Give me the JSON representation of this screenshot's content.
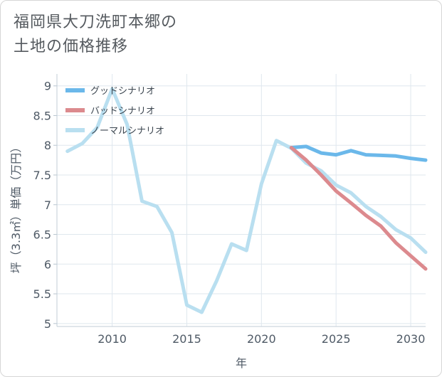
{
  "chart_data": {
    "type": "line",
    "title": "福岡県大刀洗町本郷の\n土地の価格推移",
    "xlabel": "年",
    "ylabel": "坪（3.3㎡）単価（万円）",
    "xlim": [
      2006.3,
      2031
    ],
    "ylim": [
      4.95,
      9.2
    ],
    "x_ticks": [
      2010,
      2015,
      2020,
      2025,
      2030
    ],
    "y_ticks": [
      5,
      5.5,
      6,
      6.5,
      7,
      7.5,
      8,
      8.5,
      9
    ],
    "grid": true,
    "legend_position": "top-left",
    "series": [
      {
        "name": "グッドシナリオ",
        "color": "#6bb8ea",
        "x": [
          2022,
          2023,
          2024,
          2025,
          2026,
          2027,
          2028,
          2029,
          2030,
          2031
        ],
        "y": [
          7.96,
          7.98,
          7.87,
          7.84,
          7.91,
          7.84,
          7.83,
          7.82,
          7.78,
          7.75
        ]
      },
      {
        "name": "バッドシナリオ",
        "color": "#dc8a8e",
        "x": [
          2022,
          2023,
          2024,
          2025,
          2026,
          2027,
          2028,
          2029,
          2030,
          2031
        ],
        "y": [
          7.96,
          7.75,
          7.5,
          7.23,
          7.03,
          6.82,
          6.64,
          6.36,
          6.14,
          5.92
        ]
      },
      {
        "name": "ノーマルシナリオ",
        "color": "#b9dff0",
        "x": [
          2007,
          2008,
          2009,
          2010,
          2011,
          2012,
          2013,
          2014,
          2015,
          2016,
          2017,
          2018,
          2019,
          2020,
          2021,
          2022,
          2023,
          2024,
          2025,
          2026,
          2027,
          2028,
          2029,
          2030,
          2031
        ],
        "y": [
          7.9,
          8.03,
          8.3,
          8.95,
          8.35,
          7.06,
          6.97,
          6.53,
          5.31,
          5.19,
          5.72,
          6.34,
          6.23,
          7.35,
          8.08,
          7.95,
          7.7,
          7.57,
          7.33,
          7.2,
          6.97,
          6.8,
          6.58,
          6.44,
          6.2
        ]
      }
    ]
  }
}
